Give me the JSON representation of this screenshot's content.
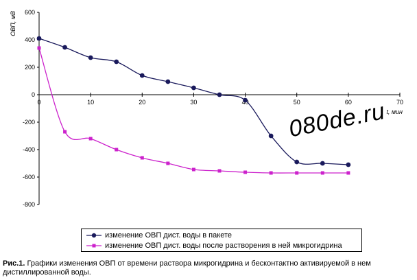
{
  "chart_data": {
    "type": "line",
    "x": [
      0,
      5,
      10,
      15,
      20,
      25,
      30,
      35,
      40,
      45,
      50,
      55,
      60
    ],
    "series": [
      {
        "name": "изменение ОВП дист. воды в пакете",
        "color": "#1a1a5c",
        "marker": "circle",
        "values": [
          410,
          345,
          270,
          240,
          140,
          95,
          50,
          0,
          -40,
          -300,
          -490,
          -500,
          -510
        ]
      },
      {
        "name": "изменение ОВП дист. воды после растворения в ней микрогидрина",
        "color": "#cc22cc",
        "marker": "square",
        "x": [
          0,
          5,
          10,
          15,
          20,
          25,
          30,
          35,
          40,
          45,
          50,
          55,
          60
        ],
        "values": [
          340,
          -270,
          -320,
          -400,
          -460,
          -500,
          -545,
          -555,
          -565,
          -570,
          -570,
          -570,
          -570
        ]
      }
    ],
    "xlabel": "t, мин",
    "ylabel": "ОВП, мВ",
    "xlim": [
      0,
      70
    ],
    "ylim": [
      -800,
      600
    ],
    "xticks": [
      "0",
      "10",
      "20",
      "30",
      "40",
      "50",
      "60",
      "70"
    ],
    "yticks": [
      "600",
      "400",
      "200",
      "0",
      "-200",
      "-400",
      "-600",
      "-800"
    ],
    "grid": false,
    "legend_placement": "bottom"
  },
  "caption": {
    "prefix": "Рис.1.",
    "text": " Графики изменения ОВП от времени раствора микрогидрина и бесконтактно активируемой в нем дистиллированной воды."
  },
  "watermark": "080de.ru"
}
